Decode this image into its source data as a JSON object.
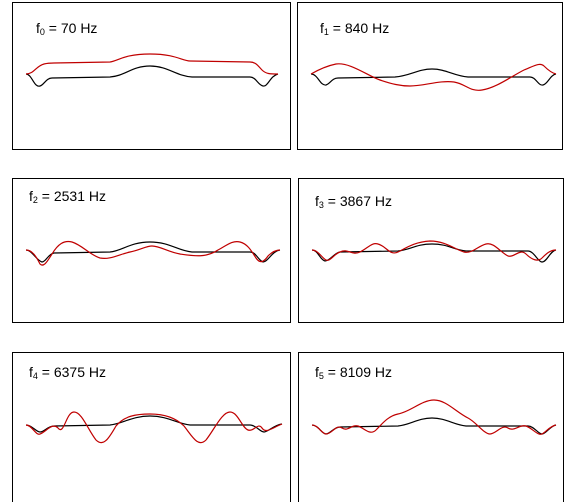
{
  "panels": [
    {
      "symbol": "f",
      "index": "0",
      "value": "= 70 Hz"
    },
    {
      "symbol": "f",
      "index": "1",
      "value": "= 840 Hz"
    },
    {
      "symbol": "f",
      "index": "2",
      "value": "= 2531 Hz"
    },
    {
      "symbol": "f",
      "index": "3",
      "value": "= 3867 Hz"
    },
    {
      "symbol": "f",
      "index": "4",
      "value": "= 6375 Hz"
    },
    {
      "symbol": "f",
      "index": "5",
      "value": "= 8109 Hz"
    }
  ],
  "colors": {
    "undeformed": "#000000",
    "mode_shape": "#c00000"
  }
}
